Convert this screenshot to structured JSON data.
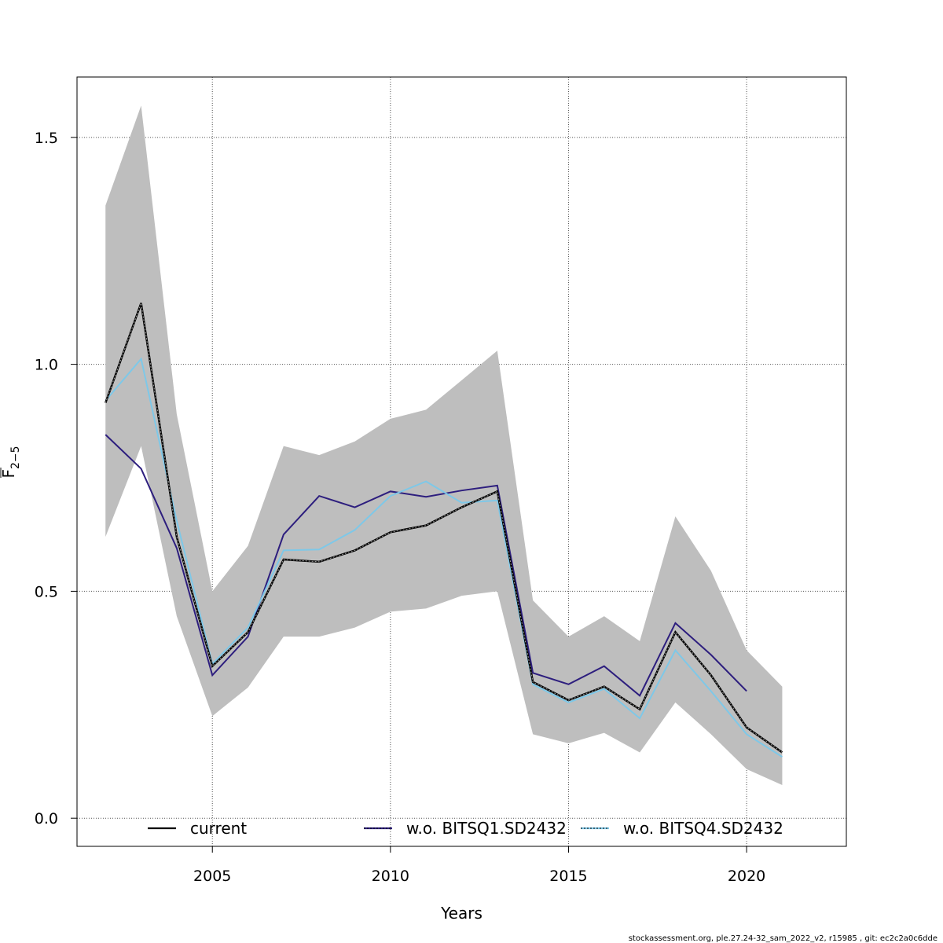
{
  "chart_data": {
    "type": "line",
    "xlabel": "Years",
    "ylabel_main": "F",
    "ylabel_sub": "2−5",
    "xlim": [
      2001.2,
      2022.8
    ],
    "ylim": [
      -0.062,
      1.633
    ],
    "xticks": [
      2005,
      2010,
      2015,
      2020
    ],
    "yticks": [
      0.0,
      0.5,
      1.0,
      1.5
    ],
    "xtick_labels": [
      "2005",
      "2010",
      "2015",
      "2020"
    ],
    "ytick_labels": [
      "0.0",
      "0.5",
      "1.0",
      "1.5"
    ],
    "grid": true,
    "legend_position": "bottom",
    "x": [
      2002,
      2003,
      2004,
      2005,
      2006,
      2007,
      2008,
      2009,
      2010,
      2011,
      2012,
      2013,
      2014,
      2015,
      2016,
      2017,
      2018,
      2019,
      2020,
      2021
    ],
    "band": {
      "color": "#bebebe",
      "lower": [
        0.62,
        0.82,
        0.445,
        0.225,
        0.288,
        0.4,
        0.4,
        0.42,
        0.455,
        0.462,
        0.49,
        0.5,
        0.185,
        0.165,
        0.188,
        0.145,
        0.255,
        0.185,
        0.108,
        0.073
      ],
      "upper": [
        1.35,
        1.57,
        0.89,
        0.5,
        0.6,
        0.82,
        0.8,
        0.83,
        0.88,
        0.9,
        0.965,
        1.03,
        0.48,
        0.4,
        0.445,
        0.39,
        0.665,
        0.545,
        0.37,
        0.29
      ]
    },
    "series": [
      {
        "name": "current",
        "color": "#000000",
        "values": [
          0.915,
          1.135,
          0.62,
          0.335,
          0.41,
          0.57,
          0.565,
          0.59,
          0.63,
          0.645,
          0.685,
          0.72,
          0.3,
          0.26,
          0.29,
          0.24,
          0.41,
          0.315,
          0.2,
          0.145
        ]
      },
      {
        "name": "w.o. BITSQ1.SD2432",
        "color": "#2d1e7e",
        "values": [
          0.845,
          0.77,
          0.595,
          0.315,
          0.4,
          0.625,
          0.71,
          0.685,
          0.72,
          0.708,
          0.722,
          0.733,
          0.32,
          0.295,
          0.335,
          0.27,
          0.43,
          0.36,
          0.28,
          null
        ]
      },
      {
        "name": "w.o. BITSQ4.SD2432",
        "color": "#7ec8e8",
        "values": [
          0.92,
          1.012,
          0.655,
          0.34,
          0.42,
          0.59,
          0.592,
          0.635,
          0.71,
          0.742,
          0.695,
          0.7,
          0.295,
          0.255,
          0.285,
          0.22,
          0.37,
          0.28,
          0.185,
          0.135
        ]
      }
    ]
  },
  "footer": "stockassessment.org, ple.27.24-32_sam_2022_v2, r15985 , git: ec2c2a0c6dde"
}
